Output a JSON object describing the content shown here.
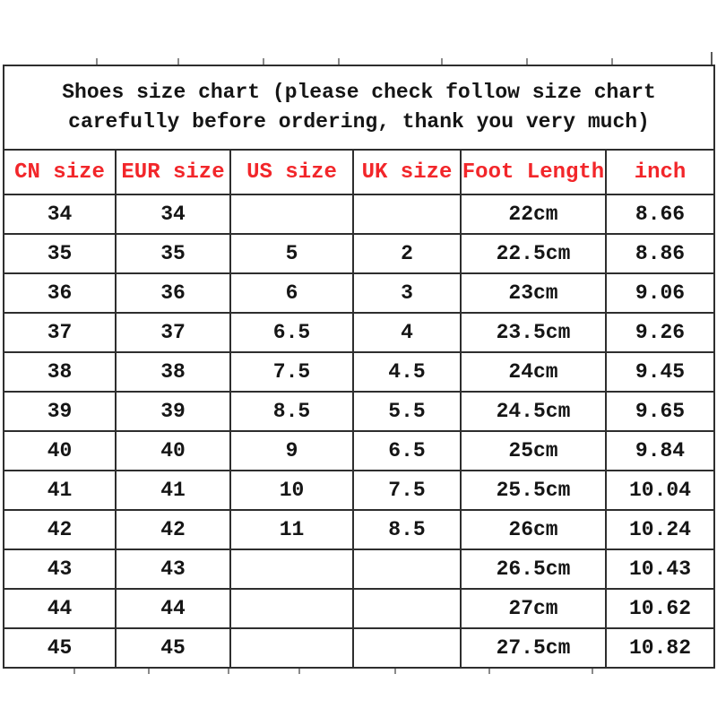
{
  "page": {
    "background": "#ffffff"
  },
  "title": {
    "line1": "Shoes size chart (please check follow size chart",
    "line2": "carefully before ordering, thank you very much)"
  },
  "table": {
    "header_color": "#f2262a",
    "text_color": "#151515",
    "border_color": "#2e2e2e",
    "headers": [
      "CN size",
      "EUR size",
      "US size",
      "UK size",
      "Foot Length",
      "inch"
    ],
    "rows": [
      [
        "34",
        "34",
        "",
        "",
        "22cm",
        "8.66"
      ],
      [
        "35",
        "35",
        "5",
        "2",
        "22.5cm",
        "8.86"
      ],
      [
        "36",
        "36",
        "6",
        "3",
        "23cm",
        "9.06"
      ],
      [
        "37",
        "37",
        "6.5",
        "4",
        "23.5cm",
        "9.26"
      ],
      [
        "38",
        "38",
        "7.5",
        "4.5",
        "24cm",
        "9.45"
      ],
      [
        "39",
        "39",
        "8.5",
        "5.5",
        "24.5cm",
        "9.65"
      ],
      [
        "40",
        "40",
        "9",
        "6.5",
        "25cm",
        "9.84"
      ],
      [
        "41",
        "41",
        "10",
        "7.5",
        "25.5cm",
        "10.04"
      ],
      [
        "42",
        "42",
        "11",
        "8.5",
        "26cm",
        "10.24"
      ],
      [
        "43",
        "43",
        "",
        "",
        "26.5cm",
        "10.43"
      ],
      [
        "44",
        "44",
        "",
        "",
        "27cm",
        "10.62"
      ],
      [
        "45",
        "45",
        "",
        "",
        "27.5cm",
        "10.82"
      ]
    ]
  }
}
